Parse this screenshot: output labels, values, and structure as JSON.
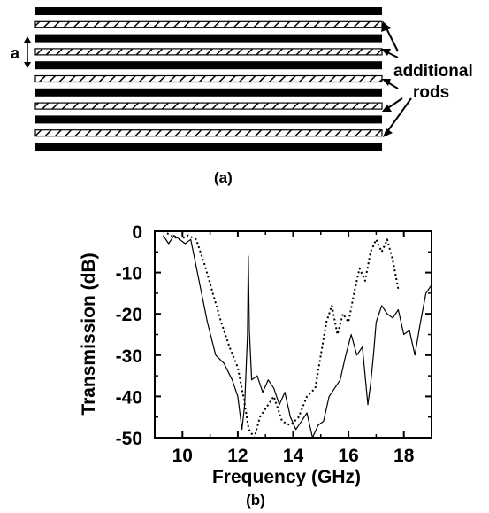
{
  "panel_a": {
    "spacing_label": "a",
    "annotation": [
      "additional",
      "rods"
    ],
    "caption": "(a)",
    "layers": [
      "solid",
      "hatched",
      "solid",
      "hatched",
      "solid",
      "hatched",
      "solid",
      "hatched",
      "solid",
      "hatched",
      "solid"
    ]
  },
  "panel_b": {
    "caption": "(b)"
  },
  "chart_data": {
    "type": "line",
    "xlabel": "Frequency (GHz)",
    "ylabel": "Transmission (dB)",
    "xlim": [
      9,
      19
    ],
    "ylim": [
      -50,
      0
    ],
    "xticks": [
      10,
      12,
      14,
      16,
      18
    ],
    "yticks": [
      0,
      -10,
      -20,
      -30,
      -40,
      -50
    ],
    "series": [
      {
        "style": "solid",
        "x": [
          9.3,
          9.5,
          9.7,
          9.9,
          10.1,
          10.3,
          10.6,
          10.9,
          11.2,
          11.5,
          11.8,
          12.0,
          12.15,
          12.25,
          12.35,
          12.38,
          12.42,
          12.5,
          12.7,
          12.9,
          13.1,
          13.3,
          13.5,
          13.7,
          13.9,
          14.1,
          14.3,
          14.5,
          14.7,
          14.9,
          15.1,
          15.3,
          15.5,
          15.7,
          15.9,
          16.1,
          16.3,
          16.5,
          16.7,
          16.8,
          16.9,
          17.0,
          17.2,
          17.4,
          17.6,
          17.8,
          18.0,
          18.2,
          18.4,
          18.6,
          18.8,
          19.0
        ],
        "y": [
          -1,
          -3,
          -1,
          -2,
          -3,
          -2,
          -12,
          -22,
          -30,
          -32,
          -36,
          -40,
          -48,
          -42,
          -25,
          -6,
          -24,
          -36,
          -35,
          -39,
          -36,
          -38,
          -42,
          -39,
          -45,
          -48,
          -46,
          -44,
          -50,
          -47,
          -46,
          -40,
          -38,
          -36,
          -30,
          -25,
          -30,
          -28,
          -42,
          -37,
          -30,
          -22,
          -18,
          -20,
          -21,
          -19,
          -25,
          -24,
          -30,
          -22,
          -15,
          -13
        ]
      },
      {
        "style": "dotted",
        "x": [
          9.3,
          9.6,
          9.9,
          10.2,
          10.5,
          10.8,
          11.1,
          11.4,
          11.7,
          12.0,
          12.2,
          12.4,
          12.6,
          12.8,
          13.0,
          13.3,
          13.6,
          13.9,
          14.2,
          14.5,
          14.8,
          15.0,
          15.2,
          15.4,
          15.6,
          15.8,
          16.0,
          16.2,
          16.4,
          16.6,
          16.8,
          17.0,
          17.2,
          17.4,
          17.6,
          17.8
        ],
        "y": [
          0,
          -1,
          -2,
          -1,
          -2,
          -8,
          -15,
          -22,
          -28,
          -33,
          -40,
          -48,
          -50,
          -45,
          -43,
          -40,
          -46,
          -47,
          -45,
          -40,
          -38,
          -30,
          -22,
          -18,
          -25,
          -20,
          -22,
          -15,
          -9,
          -12,
          -5,
          -2,
          -5,
          -2,
          -7,
          -14
        ]
      }
    ]
  }
}
